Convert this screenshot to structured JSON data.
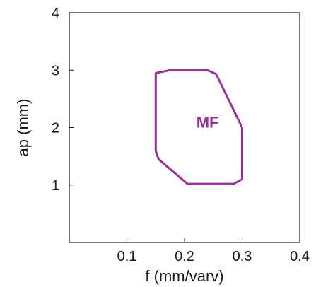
{
  "chart_data": {
    "type": "area",
    "xlabel": "f (mm/varv)",
    "ylabel": "ap (mm)",
    "xlim": [
      0,
      0.4
    ],
    "ylim": [
      0,
      4
    ],
    "x_ticks": [
      0.1,
      0.2,
      0.3,
      0.4
    ],
    "x_tick_labels": [
      "0.1",
      "0.2",
      "0.3",
      "0.4"
    ],
    "y_ticks": [
      1,
      2,
      3,
      4
    ],
    "y_tick_labels": [
      "1",
      "2",
      "3",
      "4"
    ],
    "grid": false,
    "regions": [
      {
        "label": "MF",
        "color": "#9b2f9b",
        "label_at": [
          0.24,
          2.1
        ],
        "polygon": [
          [
            0.15,
            2.95
          ],
          [
            0.175,
            3.0
          ],
          [
            0.24,
            3.0
          ],
          [
            0.255,
            2.93
          ],
          [
            0.3,
            2.0
          ],
          [
            0.3,
            1.1
          ],
          [
            0.285,
            1.02
          ],
          [
            0.205,
            1.02
          ],
          [
            0.155,
            1.45
          ],
          [
            0.15,
            1.6
          ]
        ]
      }
    ]
  }
}
